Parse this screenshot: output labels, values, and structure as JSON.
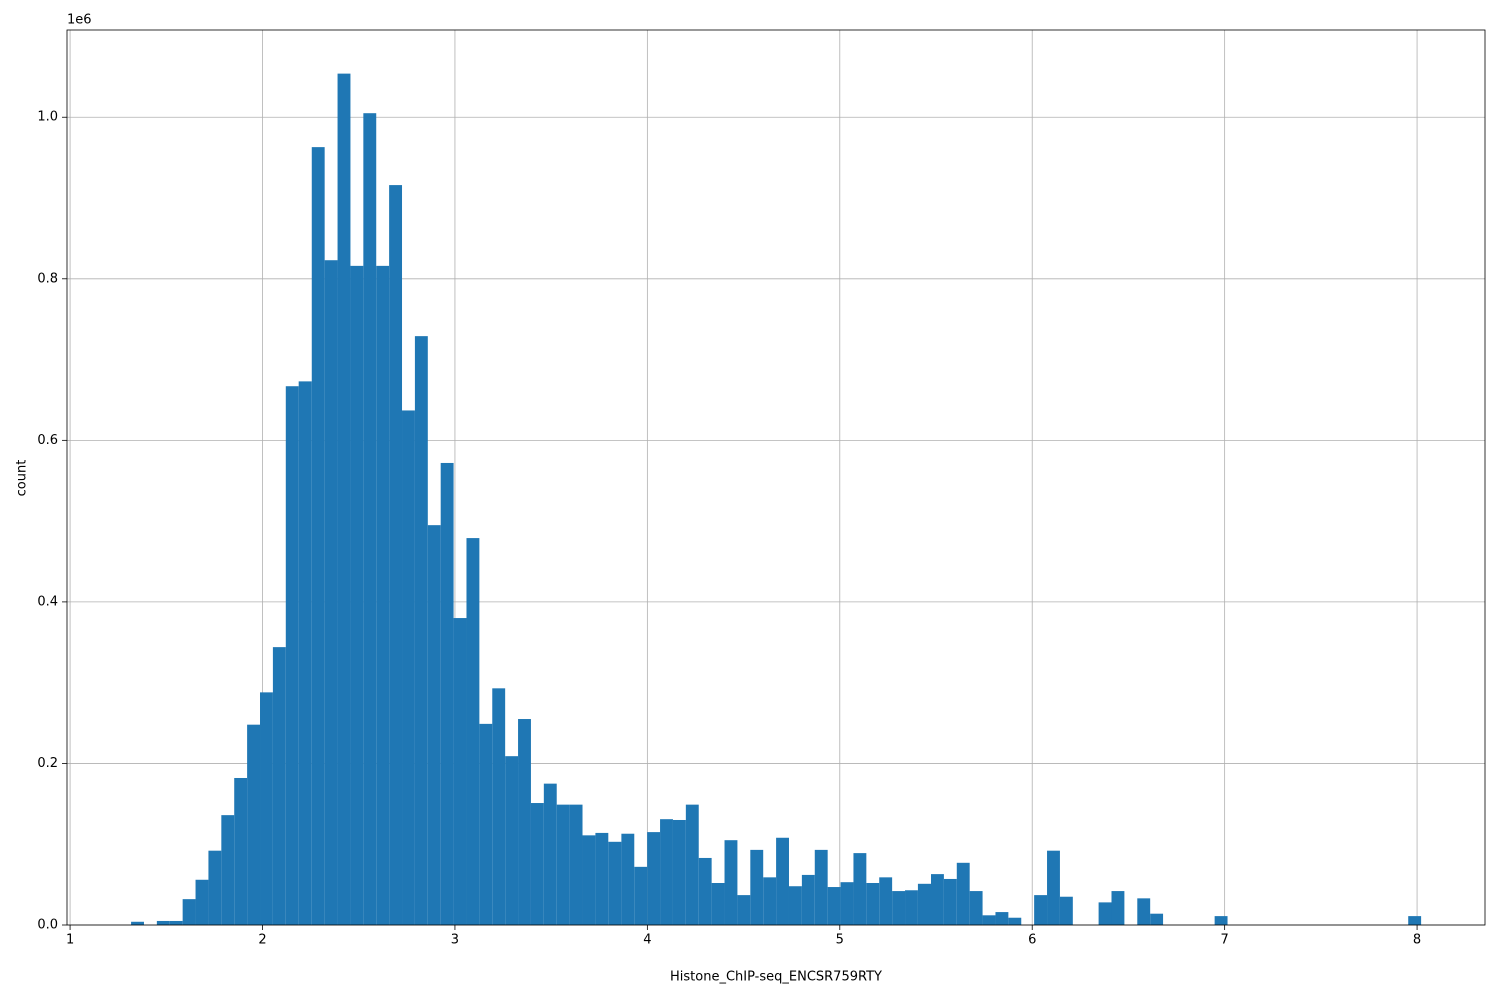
{
  "chart_data": {
    "type": "histogram",
    "xlabel": "Histone_ChIP-seq_ENCSR759RTY",
    "ylabel": "count",
    "y_offset_label": "1e6",
    "color": "#1f77b4",
    "grid": true,
    "bins": [
      1.317,
      1.384,
      1.451,
      1.518,
      1.585,
      1.652,
      1.719,
      1.786,
      1.853,
      1.92,
      1.987,
      2.054,
      2.121,
      2.188,
      2.256,
      2.323,
      2.39,
      2.457,
      2.524,
      2.591,
      2.658,
      2.725,
      2.792,
      2.859,
      2.926,
      2.993,
      3.06,
      3.127,
      3.194,
      3.261,
      3.328,
      3.395,
      3.462,
      3.529,
      3.596,
      3.663,
      3.73,
      3.797,
      3.865,
      3.932,
      3.999,
      4.066,
      4.133,
      4.2,
      4.267,
      4.334,
      4.401,
      4.468,
      4.535,
      4.602,
      4.669,
      4.736,
      4.803,
      4.87,
      4.937,
      5.004,
      5.071,
      5.138,
      5.205,
      5.272,
      5.339,
      5.406,
      5.474,
      5.541,
      5.608,
      5.675,
      5.742,
      5.809,
      5.876,
      5.943,
      6.01,
      6.077,
      6.144,
      6.211,
      6.278,
      6.345,
      6.412,
      6.479,
      6.546,
      6.613,
      6.68,
      6.747,
      6.814,
      6.881,
      6.948,
      7.015,
      7.082,
      7.15,
      7.217,
      7.284,
      7.351,
      7.418,
      7.485,
      7.552,
      7.619,
      7.686,
      7.753,
      7.82,
      7.887,
      7.954,
      8.021
    ],
    "values": [
      0.004,
      0,
      0.005,
      0.005,
      0.032,
      0.056,
      0.092,
      0.136,
      0.182,
      0.248,
      0.288,
      0.344,
      0.667,
      0.673,
      0.963,
      0.823,
      1.054,
      0.816,
      1.005,
      0.816,
      0.916,
      0.637,
      0.729,
      0.495,
      0.572,
      0.38,
      0.479,
      0.249,
      0.293,
      0.209,
      0.255,
      0.151,
      0.175,
      0.149,
      0.149,
      0.111,
      0.114,
      0.103,
      0.113,
      0.072,
      0.115,
      0.131,
      0.13,
      0.149,
      0.083,
      0.052,
      0.105,
      0.037,
      0.093,
      0.059,
      0.108,
      0.048,
      0.062,
      0.093,
      0.047,
      0.053,
      0.089,
      0.052,
      0.059,
      0.042,
      0.043,
      0.051,
      0.063,
      0.057,
      0.077,
      0.042,
      0.012,
      0.016,
      0.009,
      0,
      0.037,
      0.092,
      0.035,
      0,
      0,
      0.028,
      0.042,
      0,
      0.033,
      0.014,
      0,
      0,
      0,
      0,
      0.011,
      0,
      0,
      0,
      0,
      0,
      0,
      0,
      0,
      0,
      0,
      0,
      0,
      0,
      0,
      0.011
    ],
    "xlim": [
      0.984,
      8.353
    ],
    "ylim": [
      0,
      1.108
    ],
    "xticks": [
      1,
      2,
      3,
      4,
      5,
      6,
      7,
      8
    ],
    "yticks": [
      {
        "value": 0,
        "label": "0.0"
      },
      0.2,
      0.4,
      0.6,
      0.8,
      {
        "value": 1,
        "label": "1.0"
      }
    ]
  }
}
